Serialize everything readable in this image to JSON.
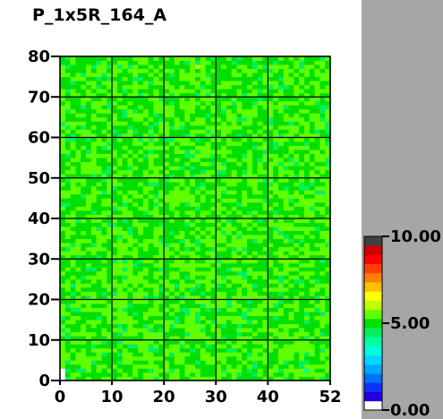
{
  "title": "P_1x5R_164_A",
  "chart_data": {
    "type": "heatmap",
    "title": "P_1x5R_164_A",
    "x_ticks": [
      "0",
      "10",
      "20",
      "30",
      "40",
      "52"
    ],
    "y_ticks": [
      "0",
      "10",
      "20",
      "30",
      "40",
      "50",
      "60",
      "70",
      "80"
    ],
    "xlim": [
      0,
      52
    ],
    "ylim": [
      0,
      80
    ],
    "grid": true,
    "typical_value": 5.2,
    "hotspots": [
      {
        "x": 0,
        "y": 0,
        "value": 0.5
      },
      {
        "x": 0,
        "y": 1,
        "value": 0.5
      },
      {
        "x": 0,
        "y": 2,
        "value": 0.5
      },
      {
        "x": 47,
        "y": 2,
        "value": 3.8
      },
      {
        "x": 26,
        "y": 77,
        "value": 6.3
      }
    ],
    "colorbar": {
      "min": 0.0,
      "max": 10.0,
      "tick_labels": [
        "10.00",
        "5.00",
        "0.00"
      ],
      "colors": [
        "#ffffff",
        "#2000e0",
        "#1030ff",
        "#0070ff",
        "#00a8ff",
        "#00d8ff",
        "#00ffe0",
        "#00ffa0",
        "#00f060",
        "#00e000",
        "#60ff00",
        "#c0ff00",
        "#ffff00",
        "#ffc000",
        "#ff8000",
        "#ff4000",
        "#ff0000",
        "#d00000",
        "#404040"
      ]
    }
  }
}
